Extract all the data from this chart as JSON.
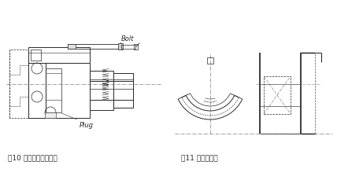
{
  "fig_width": 4.28,
  "fig_height": 2.15,
  "dpi": 100,
  "bg_color": "#ffffff",
  "lc": "#2a2a2a",
  "caption1": "图10 使用螺丝拆卸外圈",
  "caption2": "图11 拆卸用切口",
  "cap_fs": 6.5,
  "label_bolt": "Bolt",
  "label_plug": "Plug",
  "lbl_fs": 6.0
}
